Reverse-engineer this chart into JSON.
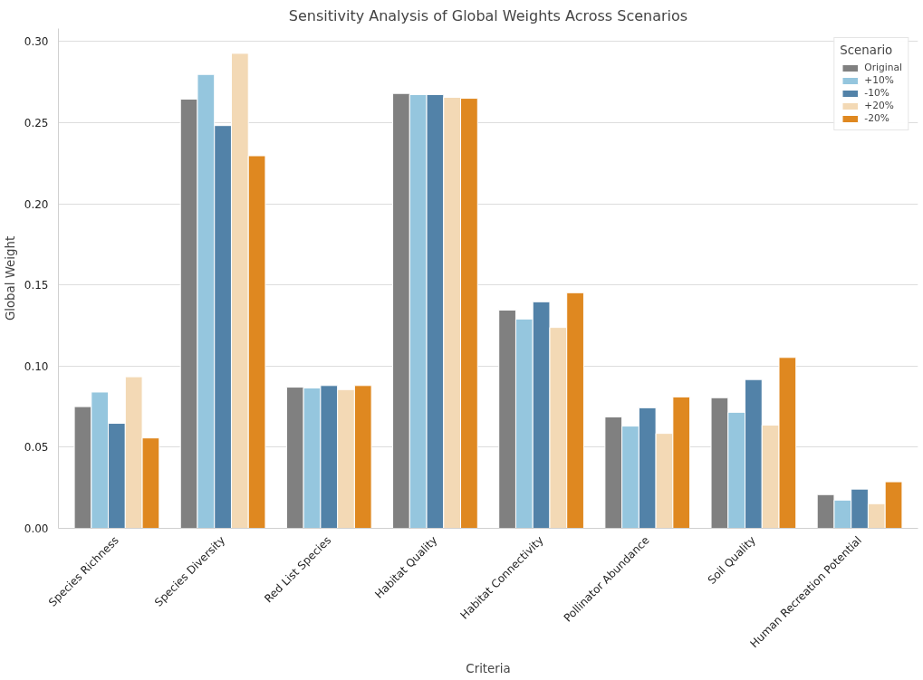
{
  "chart_data": {
    "type": "bar",
    "title": "Sensitivity Analysis of Global Weights Across Scenarios",
    "xlabel": "Criteria",
    "ylabel": "Global Weight",
    "legend_title": "Scenario",
    "categories": [
      "Species Richness",
      "Species Diversity",
      "Red List Species",
      "Habitat Quality",
      "Habitat Connectivity",
      "Pollinator Abundance",
      "Soil Quality",
      "Human Recreation Potential"
    ],
    "series": [
      {
        "name": "Original",
        "color": "#808080",
        "values": [
          0.075,
          0.2645,
          0.087,
          0.268,
          0.1345,
          0.0687,
          0.0805,
          0.0208
        ]
      },
      {
        "name": "+10%",
        "color": "#95c6de",
        "values": [
          0.084,
          0.2797,
          0.0865,
          0.2673,
          0.129,
          0.063,
          0.0715,
          0.0174
        ]
      },
      {
        "name": "-10%",
        "color": "#5282a8",
        "values": [
          0.0647,
          0.2482,
          0.088,
          0.2673,
          0.1396,
          0.0743,
          0.0917,
          0.0242
        ]
      },
      {
        "name": "+20%",
        "color": "#f3d9b5",
        "values": [
          0.0934,
          0.2927,
          0.0855,
          0.2656,
          0.1238,
          0.0585,
          0.0636,
          0.0152
        ]
      },
      {
        "name": "-20%",
        "color": "#df8820",
        "values": [
          0.0557,
          0.2296,
          0.088,
          0.265,
          0.1452,
          0.081,
          0.1053,
          0.0287
        ]
      }
    ],
    "ylim": [
      0,
      0.308
    ],
    "yticks": [
      {
        "value": 0,
        "label": "0.00"
      },
      {
        "value": 0.05,
        "label": "0.05"
      },
      {
        "value": 0.1,
        "label": "0.10"
      },
      {
        "value": 0.15,
        "label": "0.15"
      },
      {
        "value": 0.2,
        "label": "0.20"
      },
      {
        "value": 0.25,
        "label": "0.25"
      },
      {
        "value": 0.3,
        "label": "0.30"
      }
    ],
    "grid": "y",
    "legend": "top right"
  }
}
